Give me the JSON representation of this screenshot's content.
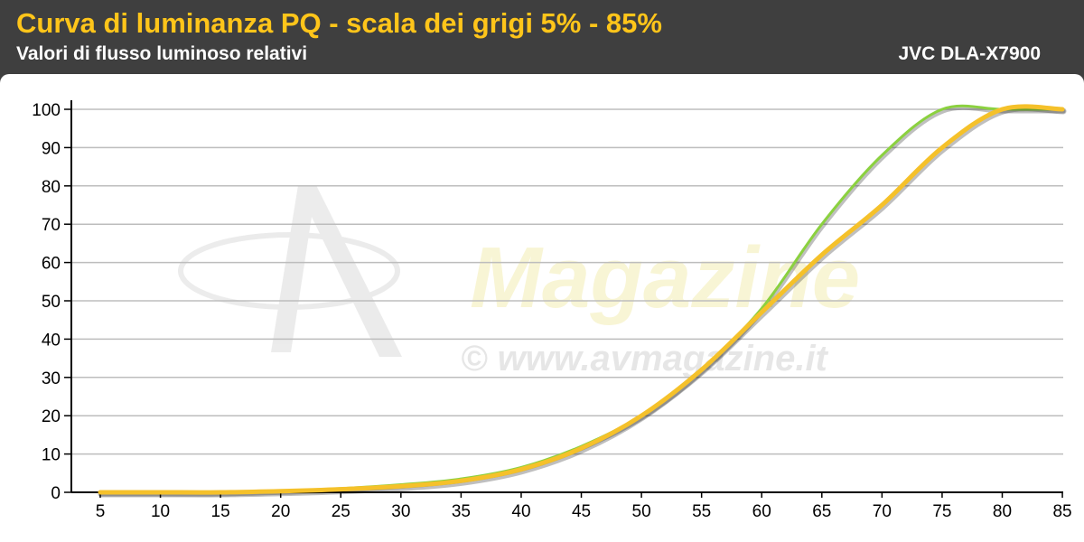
{
  "header": {
    "title": "Curva di luminanza PQ - scala dei grigi 5% - 85%",
    "subtitle": "Valori di flusso luminoso relativi",
    "model": "JVC DLA-X7900"
  },
  "watermark": {
    "brand": "Magazine",
    "url": "© www.avmagazine.it"
  },
  "colors": {
    "header_bg": "#3f3f3f",
    "title": "#ffc51a",
    "series_green": "#8bd13f",
    "series_yellow": "#f5c12a"
  },
  "chart_data": {
    "type": "line",
    "title": "Curva di luminanza PQ - scala dei grigi 5% - 85%",
    "subtitle": "Valori di flusso luminoso relativi",
    "xlabel": "",
    "ylabel": "",
    "x": [
      5,
      10,
      15,
      20,
      25,
      30,
      35,
      40,
      45,
      50,
      55,
      60,
      65,
      70,
      75,
      80,
      85
    ],
    "xlim": [
      5,
      85
    ],
    "ylim": [
      0,
      100
    ],
    "yticks": [
      0,
      10,
      20,
      30,
      40,
      50,
      60,
      70,
      80,
      90,
      100
    ],
    "grid": true,
    "series": [
      {
        "color": "#8bd13f",
        "values": [
          0,
          0,
          0,
          0.4,
          1,
          2,
          3.5,
          6.5,
          12,
          20,
          32,
          48,
          70,
          88,
          100,
          100,
          100
        ]
      },
      {
        "color": "#f5c12a",
        "values": [
          0,
          0,
          0,
          0.3,
          0.8,
          1.6,
          3,
          6,
          11.5,
          20,
          32,
          47,
          62,
          75,
          90,
          100,
          100
        ]
      }
    ]
  }
}
